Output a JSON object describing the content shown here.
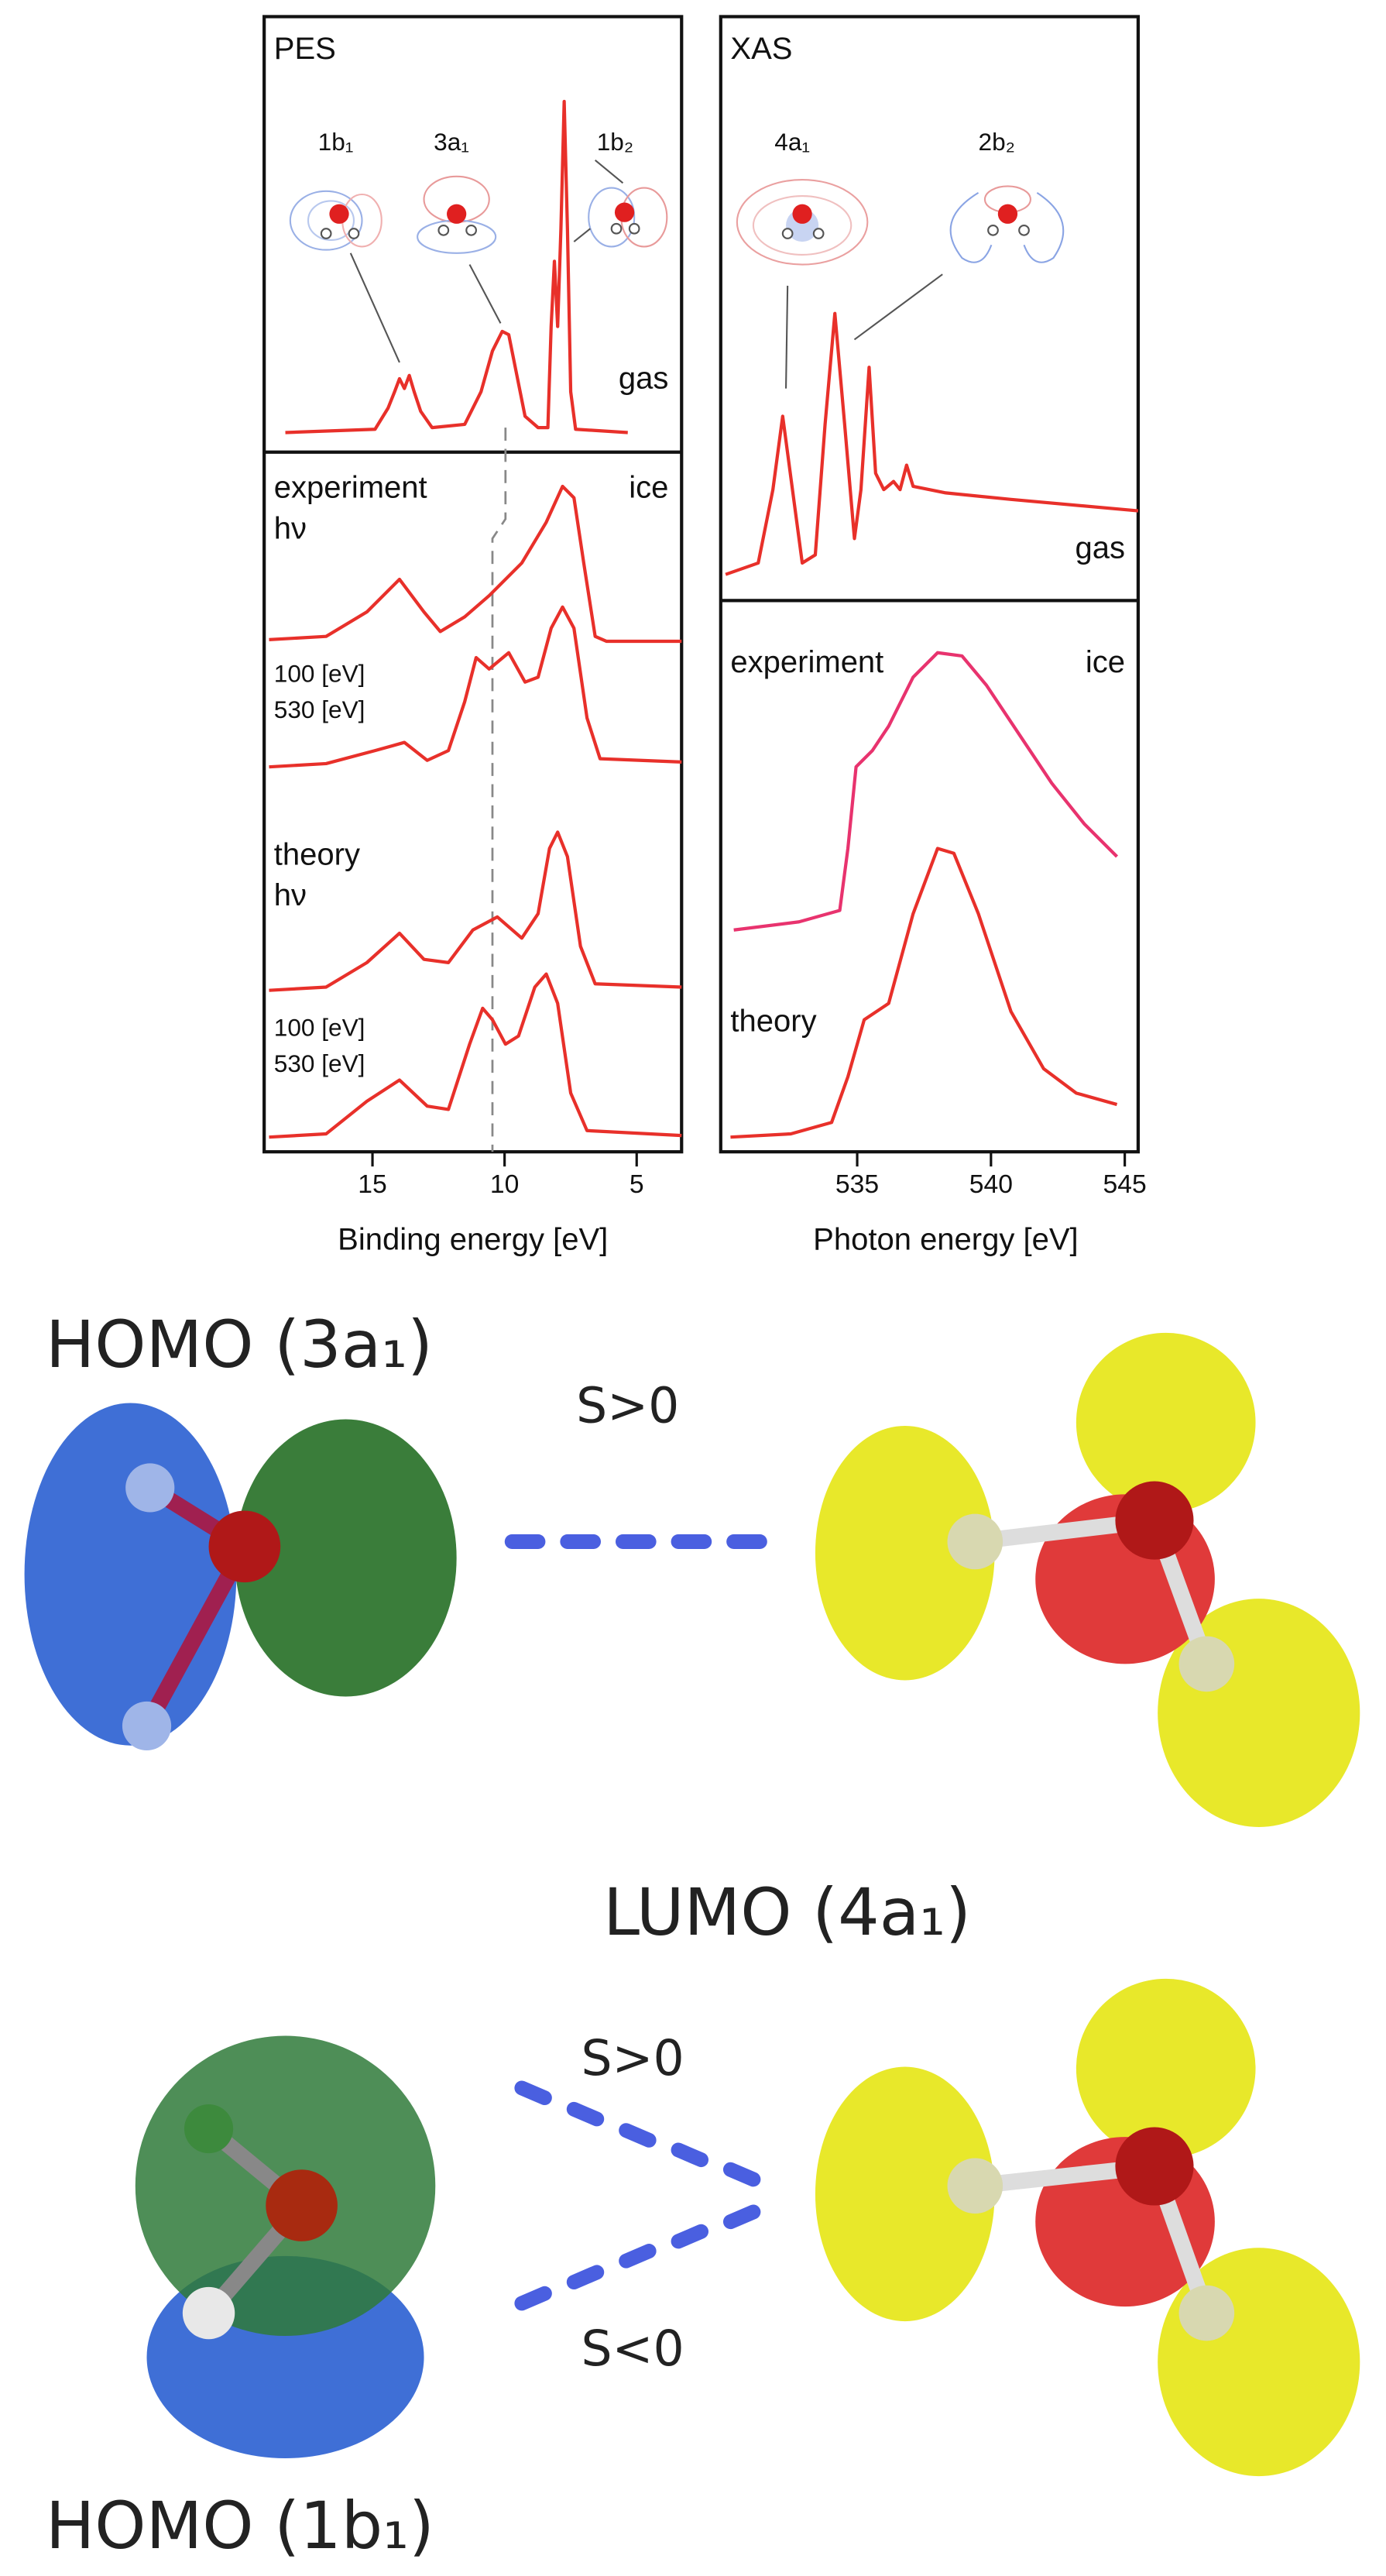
{
  "pes": {
    "title": "PES",
    "orbitals": [
      "1b₁",
      "3a₁",
      "1b₂"
    ],
    "gas_label": "gas",
    "ice_label": "ice",
    "experiment_label": "experiment",
    "theory_label": "theory",
    "hv_labels": [
      "hν",
      "hν"
    ],
    "energy_labels": [
      "100 [eV]",
      "530 [eV]",
      "100 [eV]",
      "530 [eV]"
    ],
    "xlabel": "Binding energy [eV]",
    "xlim": [
      19.1,
      3.3
    ],
    "xticks": [
      15,
      10,
      5
    ]
  },
  "xas": {
    "title": "XAS",
    "orbitals": [
      "4a₁",
      "2b₂"
    ],
    "gas_label": "gas",
    "ice_label": "ice",
    "experiment_label": "experiment",
    "theory_label": "theory",
    "xlabel": "Photon energy [eV]",
    "xlim": [
      529.9,
      545.5
    ],
    "xticks": [
      535,
      540,
      545
    ]
  },
  "orbitals": {
    "homo_3a1": "HOMO (3a₁)",
    "lumo_4a1": "LUMO (4a₁)",
    "homo_1b1": "HOMO (1b₁)",
    "overlaps": [
      "S>0",
      "S>0",
      "S<0"
    ]
  }
}
